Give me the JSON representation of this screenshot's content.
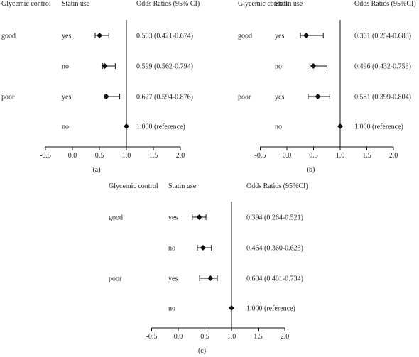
{
  "chart_data": [
    {
      "type": "forest",
      "panel_label": "(a)",
      "headers": {
        "group": "Glycemic control",
        "statin": "Statin use",
        "or": "Odds Ratios (95% CI)"
      },
      "rows": [
        {
          "group": "good",
          "statin": "yes",
          "label": "0.503 (0.421-0.674)",
          "or": 0.503,
          "lo": 0.421,
          "hi": 0.674
        },
        {
          "group": "",
          "statin": "no",
          "label": "0.599 (0.562-0.794)",
          "or": 0.599,
          "lo": 0.562,
          "hi": 0.794
        },
        {
          "group": "poor",
          "statin": "yes",
          "label": "0.627 (0.594-0.876)",
          "or": 0.627,
          "lo": 0.594,
          "hi": 0.876
        },
        {
          "group": "",
          "statin": "no",
          "label": "1.000 (reference)",
          "or": 1.0,
          "lo": 1.0,
          "hi": 1.0
        }
      ],
      "xlim": [
        -0.5,
        2.0
      ],
      "xticks": [
        "-0.5",
        "0.0",
        "0.5",
        "1.0",
        "1.5",
        "2.0"
      ],
      "reference": 1.0
    },
    {
      "type": "forest",
      "panel_label": "(b)",
      "headers": {
        "group": "Glycemic control",
        "statin": "Statin use",
        "or": "Odds Ratios (95%CI)"
      },
      "rows": [
        {
          "group": "good",
          "statin": "yes",
          "label": "0.361 (0.254-0.683)",
          "or": 0.361,
          "lo": 0.254,
          "hi": 0.683
        },
        {
          "group": "",
          "statin": "no",
          "label": "0.496 (0.432-0.753)",
          "or": 0.496,
          "lo": 0.432,
          "hi": 0.753
        },
        {
          "group": "poor",
          "statin": "yes",
          "label": "0.581 (0.399-0.804)",
          "or": 0.581,
          "lo": 0.399,
          "hi": 0.804
        },
        {
          "group": "",
          "statin": "no",
          "label": "1.000 (reference)",
          "or": 1.0,
          "lo": 1.0,
          "hi": 1.0
        }
      ],
      "xlim": [
        -0.5,
        2.0
      ],
      "xticks": [
        "-0.5",
        "0.0",
        "0.5",
        "1.0",
        "1.5",
        "2.0"
      ],
      "reference": 1.0
    },
    {
      "type": "forest",
      "panel_label": "(c)",
      "headers": {
        "group": "Glycemic control",
        "statin": "Statin use",
        "or": "Odds Ratios (95%CI)"
      },
      "rows": [
        {
          "group": "good",
          "statin": "yes",
          "label": "0.394 (0.264-0.521)",
          "or": 0.394,
          "lo": 0.264,
          "hi": 0.521
        },
        {
          "group": "",
          "statin": "no",
          "label": "0.464 (0.360-0.623)",
          "or": 0.464,
          "lo": 0.36,
          "hi": 0.623
        },
        {
          "group": "poor",
          "statin": "yes",
          "label": "0.604 (0.401-0.734)",
          "or": 0.604,
          "lo": 0.401,
          "hi": 0.734
        },
        {
          "group": "",
          "statin": "no",
          "label": "1.000 (reference)",
          "or": 1.0,
          "lo": 1.0,
          "hi": 1.0
        }
      ],
      "xlim": [
        -0.5,
        2.0
      ],
      "xticks": [
        "-0.5",
        "0.0",
        "0.5",
        "1.0",
        "1.5",
        "2.0"
      ],
      "reference": 1.0
    }
  ]
}
